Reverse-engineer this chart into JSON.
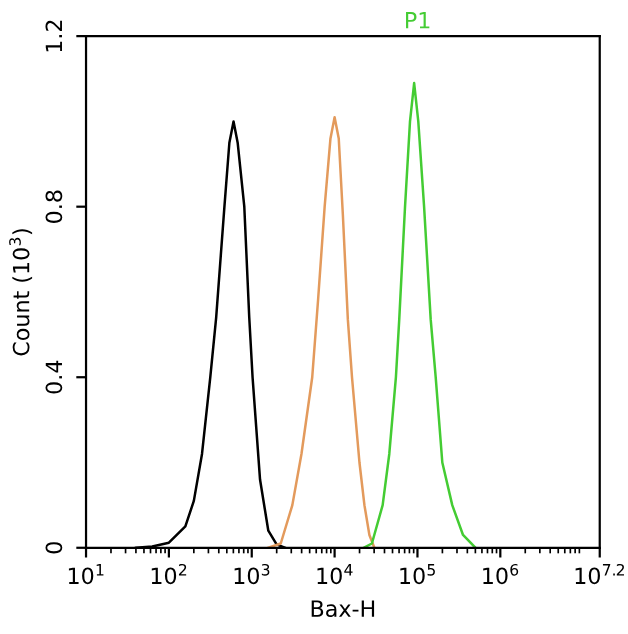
{
  "chart_data": {
    "type": "line",
    "xlabel": "Bax-H",
    "ylabel": "Count (10$^{3}$)",
    "log": "x",
    "grid": false,
    "legend": false,
    "marker": "none",
    "line_style": "solid",
    "xlim": [
      10,
      15848932
    ],
    "ylim": [
      0,
      1.2
    ],
    "xticks": [
      {
        "value": 10,
        "label": "10$^{1}$"
      },
      {
        "value": 100,
        "label": "10$^{2}$"
      },
      {
        "value": 1000,
        "label": "10$^{3}$"
      },
      {
        "value": 10000,
        "label": "10$^{4}$"
      },
      {
        "value": 100000,
        "label": "10$^{5}$"
      },
      {
        "value": 1000000,
        "label": "10$^{6}$"
      },
      {
        "value": 15848932,
        "label": "10$^{7.2}$"
      }
    ],
    "yticks": [
      0,
      0.4,
      0.8,
      1.2
    ],
    "annotations": [
      "P1"
    ],
    "series": [
      {
        "color": "#000000",
        "x": [
          40,
          63,
          100,
          158,
          200,
          251,
          316,
          372,
          468,
          537,
          603,
          676,
          813,
          933,
          1023,
          1259,
          1585,
          1995,
          2512
        ],
        "values": [
          0,
          0.003,
          0.012,
          0.05,
          0.11,
          0.22,
          0.4,
          0.54,
          0.8,
          0.95,
          1.0,
          0.95,
          0.8,
          0.54,
          0.4,
          0.16,
          0.04,
          0.008,
          0
        ]
      },
      {
        "color": "#e39a5c",
        "x": [
          1585,
          2239,
          3090,
          3981,
          5370,
          6310,
          7586,
          8913,
          10000,
          11220,
          12589,
          14454,
          16218,
          19953,
          22909,
          26303,
          30200
        ],
        "values": [
          0,
          0.01,
          0.1,
          0.22,
          0.4,
          0.58,
          0.8,
          0.96,
          1.01,
          0.96,
          0.78,
          0.535,
          0.4,
          0.2,
          0.1,
          0.03,
          0
        ]
      },
      {
        "color": "#44cc33",
        "x": [
          22387,
          28184,
          38019,
          45709,
          54954,
          60256,
          70795,
          81283,
          91201,
          102329,
          120226,
          144544,
          165959,
          199526,
          263027,
          354813,
          501187
        ],
        "values": [
          0,
          0.01,
          0.1,
          0.22,
          0.4,
          0.535,
          0.8,
          1.0,
          1.09,
          1.0,
          0.8,
          0.535,
          0.4,
          0.2,
          0.1,
          0.03,
          0
        ]
      }
    ]
  }
}
